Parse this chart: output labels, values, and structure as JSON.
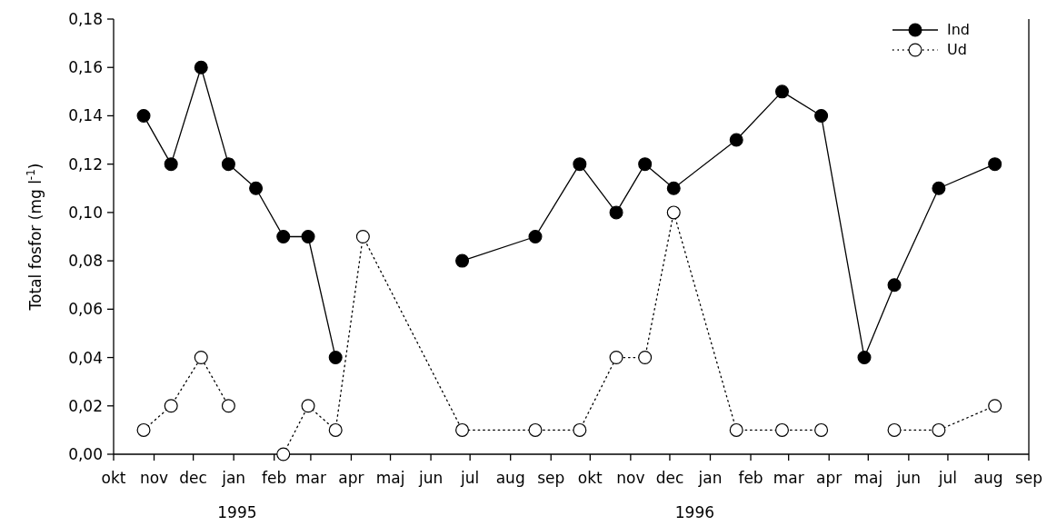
{
  "chart_data": {
    "type": "line",
    "ylabel": "Total fosfor (mg l$^{-1}$)",
    "x": [
      "1994-10-24",
      "1994-11-14",
      "1994-12-07",
      "1994-12-28",
      "1995-01-18",
      "1995-02-08",
      "1995-02-27",
      "1995-03-20",
      "1995-04-10",
      "1995-06-25",
      "1995-08-20",
      "1995-09-23",
      "1995-10-21",
      "1995-11-12",
      "1995-12-04",
      "1996-01-21",
      "1996-02-25",
      "1996-03-26",
      "1996-04-28",
      "1996-05-21",
      "1996-06-24",
      "1996-08-06"
    ],
    "series": [
      {
        "name": "Ind",
        "color": "#000000",
        "line_style": "solid",
        "values": [
          0.14,
          0.12,
          0.16,
          0.12,
          0.11,
          0.09,
          0.09,
          0.04,
          null,
          0.08,
          0.09,
          0.12,
          0.1,
          0.12,
          0.11,
          0.13,
          0.15,
          0.14,
          0.04,
          0.07,
          0.11,
          0.12
        ]
      },
      {
        "name": "Ud",
        "color": "#000000",
        "line_style": "dotted",
        "values": [
          0.01,
          0.02,
          0.04,
          0.02,
          null,
          0.0,
          0.02,
          0.01,
          0.09,
          0.01,
          0.01,
          0.01,
          0.04,
          0.04,
          0.1,
          0.01,
          0.01,
          0.01,
          null,
          0.01,
          0.01,
          0.02
        ]
      }
    ],
    "xlim": [
      "1994-10-01",
      "1996-09-01"
    ],
    "xticks": [
      {
        "value": "1994-10-01",
        "label": "okt"
      },
      {
        "value": "1994-11-01",
        "label": "nov"
      },
      {
        "value": "1994-12-01",
        "label": "dec"
      },
      {
        "value": "1995-01-01",
        "label": "jan"
      },
      {
        "value": "1995-02-01",
        "label": "feb"
      },
      {
        "value": "1995-03-01",
        "label": "mar"
      },
      {
        "value": "1995-04-01",
        "label": "apr"
      },
      {
        "value": "1995-05-01",
        "label": "maj"
      },
      {
        "value": "1995-06-01",
        "label": "jun"
      },
      {
        "value": "1995-07-01",
        "label": "jul"
      },
      {
        "value": "1995-08-01",
        "label": "aug"
      },
      {
        "value": "1995-09-01",
        "label": "sep"
      },
      {
        "value": "1995-10-01",
        "label": "okt"
      },
      {
        "value": "1995-11-01",
        "label": "nov"
      },
      {
        "value": "1995-12-01",
        "label": "dec"
      },
      {
        "value": "1996-01-01",
        "label": "jan"
      },
      {
        "value": "1996-02-01",
        "label": "feb"
      },
      {
        "value": "1996-03-01",
        "label": "mar"
      },
      {
        "value": "1996-04-01",
        "label": "apr"
      },
      {
        "value": "1996-05-01",
        "label": "maj"
      },
      {
        "value": "1996-06-01",
        "label": "jun"
      },
      {
        "value": "1996-07-01",
        "label": "jul"
      },
      {
        "value": "1996-08-01",
        "label": "aug"
      },
      {
        "value": "1996-09-01",
        "label": "sep"
      }
    ],
    "ylim": [
      0,
      0.18
    ],
    "yticks": [
      {
        "value": 0,
        "label": "0,00"
      },
      {
        "value": 0.02,
        "label": "0,02"
      },
      {
        "value": 0.04,
        "label": "0,04"
      },
      {
        "value": 0.06,
        "label": "0,06"
      },
      {
        "value": 0.08,
        "label": "0,08"
      },
      {
        "value": 0.1,
        "label": "0,10"
      },
      {
        "value": 0.12,
        "label": "0,12"
      },
      {
        "value": 0.14,
        "label": "0,14"
      },
      {
        "value": 0.16,
        "label": "0,16"
      },
      {
        "value": 0.18,
        "label": "0,18"
      }
    ],
    "annotations": [
      "1995",
      "1996"
    ],
    "marker": "circle",
    "grid": false,
    "legend": "top right"
  }
}
